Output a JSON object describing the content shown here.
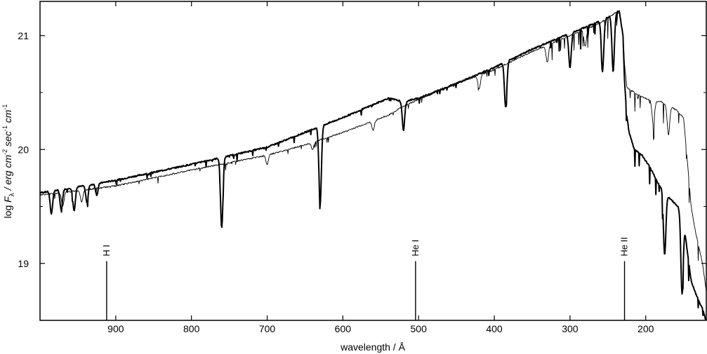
{
  "chart_data": {
    "type": "line",
    "xlabel": "wavelength / Å",
    "ylabel": {
      "prefix": "log ",
      "symbol": "F",
      "subscript": "λ",
      "unit_main": " / erg cm",
      "exp1": "-2",
      "mid": " sec",
      "exp2": "-1",
      "mid2": " cm",
      "exp3": "-1"
    },
    "xlim": [
      1000,
      120
    ],
    "ylim": [
      18.5,
      21.3
    ],
    "xticks": [
      900,
      800,
      700,
      600,
      500,
      400,
      300,
      200
    ],
    "yticks": [
      19,
      20,
      21
    ],
    "grid": false,
    "series": [
      {
        "style": "thick",
        "x": [
          1000,
          960,
          900,
          800,
          700,
          650,
          600,
          540,
          520,
          500,
          450,
          400,
          350,
          300,
          270,
          250,
          240,
          235,
          230,
          228,
          225,
          222,
          215,
          205,
          195,
          185,
          175,
          165,
          155,
          150,
          145,
          140,
          135,
          125,
          120
        ],
        "y": [
          19.62,
          19.66,
          19.73,
          19.87,
          20.02,
          20.15,
          20.28,
          20.45,
          20.42,
          20.45,
          20.58,
          20.72,
          20.88,
          21.02,
          21.1,
          21.16,
          21.2,
          21.22,
          21.0,
          20.6,
          20.3,
          20.15,
          20.0,
          19.95,
          19.85,
          19.72,
          19.62,
          19.55,
          19.48,
          19.4,
          19.1,
          18.85,
          18.75,
          18.6,
          18.5
        ],
        "lines": [
          {
            "x": 985,
            "depth": 0.2
          },
          {
            "x": 972,
            "depth": 0.18
          },
          {
            "x": 955,
            "depth": 0.2
          },
          {
            "x": 938,
            "depth": 0.15
          },
          {
            "x": 925,
            "depth": 0.1
          },
          {
            "x": 760,
            "depth": 0.62
          },
          {
            "x": 630,
            "depth": 0.68
          },
          {
            "x": 520,
            "depth": 0.25
          },
          {
            "x": 385,
            "depth": 0.4
          },
          {
            "x": 300,
            "depth": 0.3
          },
          {
            "x": 257,
            "depth": 0.45
          },
          {
            "x": 243,
            "depth": 0.5
          },
          {
            "x": 175,
            "depth": 0.55
          },
          {
            "x": 152,
            "depth": 0.7
          }
        ]
      },
      {
        "style": "thin",
        "x": [
          1000,
          960,
          900,
          800,
          700,
          650,
          600,
          540,
          520,
          500,
          450,
          400,
          350,
          300,
          270,
          250,
          240,
          235,
          230,
          228,
          225,
          220,
          210,
          200,
          190,
          180,
          170,
          160,
          150,
          145,
          140,
          135,
          130,
          125,
          120
        ],
        "y": [
          19.6,
          19.63,
          19.68,
          19.82,
          19.95,
          20.04,
          20.15,
          20.3,
          20.38,
          20.44,
          20.58,
          20.7,
          20.86,
          21.0,
          21.08,
          21.15,
          21.2,
          21.2,
          21.0,
          20.75,
          20.55,
          20.52,
          20.48,
          20.45,
          20.42,
          20.42,
          20.38,
          20.35,
          20.28,
          19.9,
          19.5,
          19.3,
          19.15,
          19.0,
          18.75
        ],
        "lines": [
          {
            "x": 970,
            "depth": 0.12
          },
          {
            "x": 945,
            "depth": 0.1
          },
          {
            "x": 700,
            "depth": 0.08
          },
          {
            "x": 640,
            "depth": 0.06
          },
          {
            "x": 560,
            "depth": 0.08
          },
          {
            "x": 420,
            "depth": 0.12
          },
          {
            "x": 330,
            "depth": 0.15
          },
          {
            "x": 280,
            "depth": 0.15
          },
          {
            "x": 190,
            "depth": 0.2
          },
          {
            "x": 170,
            "depth": 0.25
          }
        ]
      }
    ],
    "annotations": [
      {
        "label": "H I",
        "x": 912,
        "y_top": 19.02,
        "label_y": 19.05
      },
      {
        "label": "He I",
        "x": 504,
        "y_top": 19.02,
        "label_y": 19.05
      },
      {
        "label": "He II",
        "x": 228,
        "y_top": 19.02,
        "label_y": 19.05
      }
    ]
  }
}
